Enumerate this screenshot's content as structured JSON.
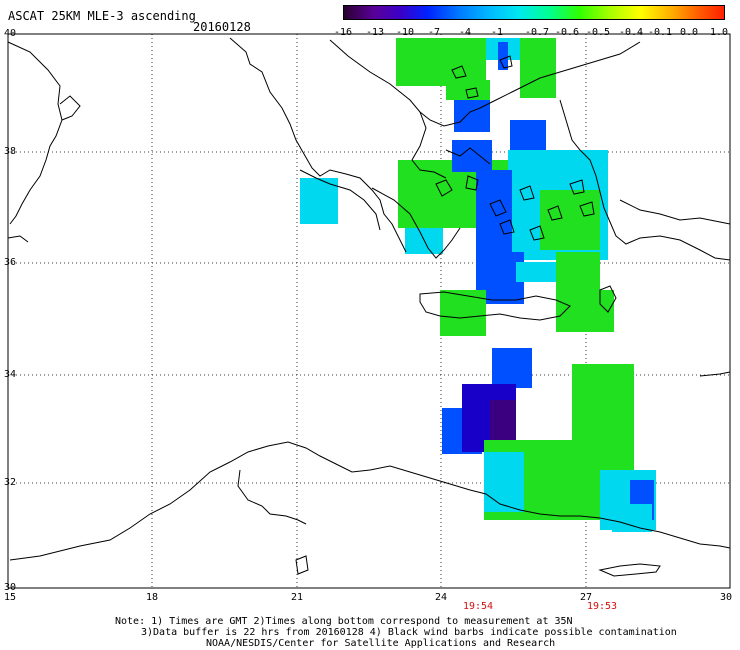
{
  "header": {
    "title": "ASCAT 25KM MLE-3 ascending",
    "date": "20160128"
  },
  "colorbar": {
    "labels": [
      "-16",
      "-13",
      "-10",
      "-7",
      "-4",
      "-1",
      "-0.7",
      "-0.6",
      "-0.5",
      "-0.4",
      "-0.1",
      "0.0",
      "1.0"
    ]
  },
  "axes": {
    "lat_labels": [
      "40",
      "38",
      "36",
      "34",
      "32",
      "30"
    ],
    "lon_labels": [
      "15",
      "18",
      "21",
      "24",
      "27",
      "30"
    ]
  },
  "times": [
    "19:54",
    "19:53"
  ],
  "notes": {
    "line1": "Note: 1) Times are GMT 2)Times along bottom correspond to measurement at 35N",
    "line2": "3)Data buffer is 22 hrs from 20160128 4) Black wind barbs indicate possible contamination",
    "line3": "NOAA/NESDIS/Center for Satellite Applications and Research"
  },
  "colors": {
    "green": "#20e020",
    "cyan": "#00d8f0",
    "blue": "#0050ff",
    "dark_blue": "#1800c8",
    "purple": "#3a0080",
    "time_red": "#d01010"
  }
}
